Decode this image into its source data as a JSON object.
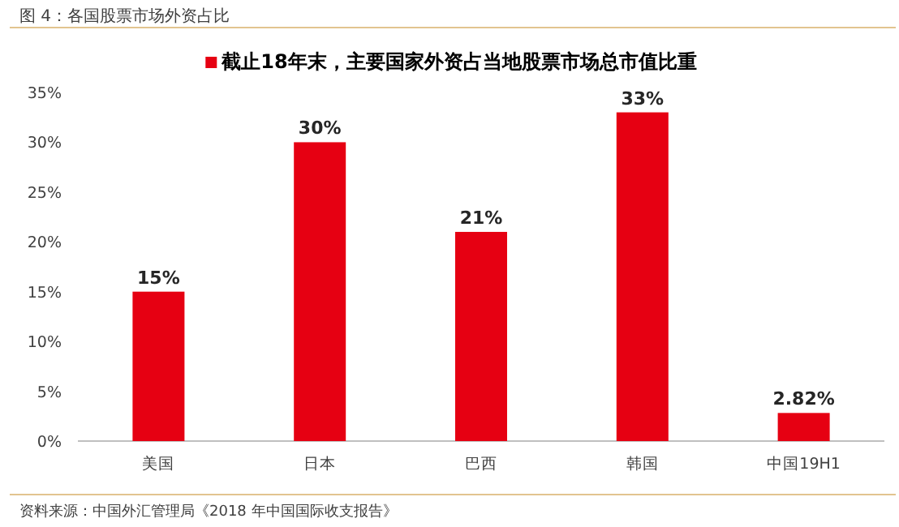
{
  "chart_data": {
    "type": "bar",
    "title": "图 4：各国股票市场外资占比",
    "annotations": [
      "资料来源：中国外汇管理局《2018 年中国国际收支报告》"
    ],
    "categories": [
      "美国",
      "日本",
      "巴西",
      "韩国",
      "中国19H1"
    ],
    "series": [
      {
        "name": "截止18年末，主要国家外资占当地股票市场总市值比重",
        "color": "#e60012",
        "values": [
          15,
          30,
          21,
          33,
          2.82
        ],
        "value_labels": [
          "15%",
          "30%",
          "21%",
          "33%",
          "2.82%"
        ]
      }
    ],
    "ylim": [
      0,
      35
    ],
    "yticks": [
      {
        "value": 0,
        "label": "0%"
      },
      {
        "value": 5,
        "label": "5%"
      },
      {
        "value": 10,
        "label": "10%"
      },
      {
        "value": 15,
        "label": "15%"
      },
      {
        "value": 20,
        "label": "20%"
      },
      {
        "value": 25,
        "label": "25%"
      },
      {
        "value": 30,
        "label": "30%"
      },
      {
        "value": 35,
        "label": "35%"
      }
    ],
    "legend": "top",
    "grid": false
  }
}
